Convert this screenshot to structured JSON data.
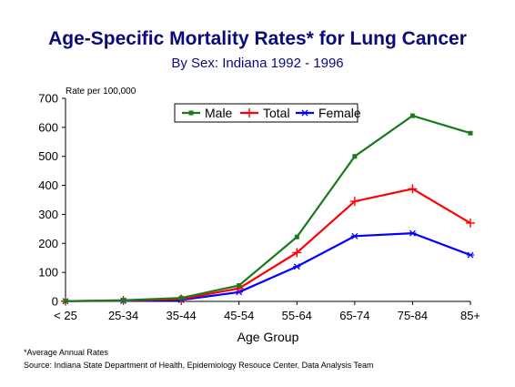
{
  "chart_data": {
    "type": "line",
    "title": "Age-Specific Mortality Rates* for Lung Cancer",
    "subtitle": "By Sex:  Indiana 1992 - 1996",
    "ylabel": "Rate per 100,000",
    "xlabel": "Age Group",
    "categories": [
      "< 25",
      "25-34",
      "35-44",
      "45-54",
      "55-64",
      "65-74",
      "75-84",
      "85+"
    ],
    "ylim": [
      0,
      700
    ],
    "yticks": [
      0,
      100,
      200,
      300,
      400,
      500,
      600,
      700
    ],
    "grid": false,
    "legend_position": "top-center",
    "series": [
      {
        "name": "Male",
        "color": "#1a7a1a",
        "marker": "square",
        "values": [
          1,
          4,
          12,
          55,
          222,
          500,
          640,
          580
        ]
      },
      {
        "name": "Total",
        "color": "#ff0000",
        "marker": "plus",
        "values": [
          1,
          3,
          8,
          45,
          168,
          345,
          388,
          270
        ]
      },
      {
        "name": "Female",
        "color": "#0000ff",
        "marker": "star",
        "values": [
          1,
          2,
          5,
          32,
          120,
          225,
          235,
          160
        ]
      }
    ]
  },
  "footnotes": {
    "note": "*Average Annual Rates",
    "source": "Source:  Indiana State Department of Health, Epidemiology Resouce Center, Data Analysis Team"
  }
}
